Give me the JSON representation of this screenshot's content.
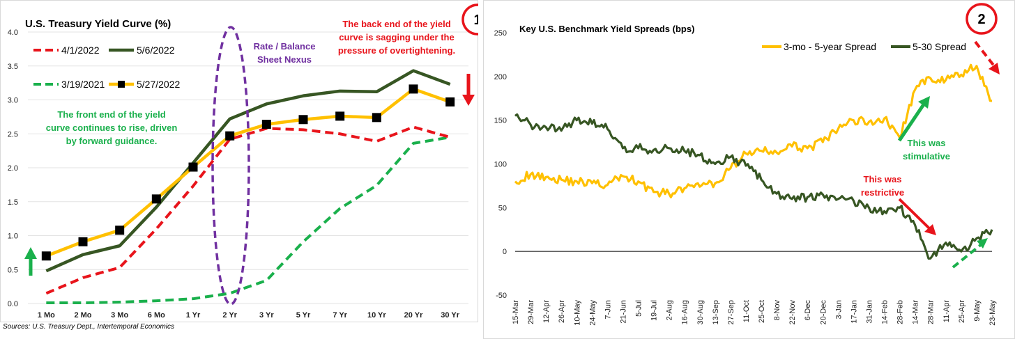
{
  "sources": "Sources: U.S. Treasury Dept., Intertemporal Economics",
  "chart_data": [
    {
      "type": "line",
      "title": "U.S. Treasury Yield Curve (%)",
      "badge": "1",
      "categories": [
        "1 Mo",
        "2 Mo",
        "3 Mo",
        "6 Mo",
        "1 Yr",
        "2 Yr",
        "3 Yr",
        "5 Yr",
        "7 Yr",
        "10 Yr",
        "20 Yr",
        "30 Yr"
      ],
      "ylim": [
        0,
        4.0
      ],
      "yticks": [
        "0.0",
        "0.5",
        "1.0",
        "1.5",
        "2.0",
        "2.5",
        "3.0",
        "3.5",
        "4.0"
      ],
      "series": [
        {
          "name": "4/1/2022",
          "color": "#e8141b",
          "style": "dashed",
          "values": [
            0.15,
            0.38,
            0.53,
            1.1,
            1.73,
            2.42,
            2.58,
            2.56,
            2.5,
            2.39,
            2.6,
            2.45
          ]
        },
        {
          "name": "5/6/2022",
          "color": "#375623",
          "style": "solid",
          "values": [
            0.48,
            0.72,
            0.85,
            1.42,
            2.07,
            2.72,
            2.94,
            3.06,
            3.13,
            3.12,
            3.43,
            3.23
          ]
        },
        {
          "name": "3/19/2021",
          "color": "#1ab04c",
          "style": "dashed",
          "values": [
            0.01,
            0.01,
            0.02,
            0.04,
            0.07,
            0.15,
            0.34,
            0.91,
            1.4,
            1.74,
            2.36,
            2.45
          ]
        },
        {
          "name": "5/27/2022",
          "color": "#ffc000",
          "style": "solid-marker",
          "values": [
            0.7,
            0.91,
            1.08,
            1.54,
            2.01,
            2.47,
            2.64,
            2.71,
            2.76,
            2.74,
            3.16,
            2.97
          ]
        }
      ],
      "annotations": {
        "nexus": [
          "Rate / Balance",
          "Sheet Nexus"
        ],
        "back_end": [
          "The back end of the yield",
          "curve is sagging under the",
          "pressure of overtightening."
        ],
        "front_end": [
          "The front end of the yield",
          "curve continues to rise, driven",
          "by forward guidance."
        ]
      },
      "colors": {
        "nexus": "#7030a0",
        "red": "#e8141b",
        "green": "#1ab04c"
      }
    },
    {
      "type": "line",
      "title": "Key U.S. Benchmark Yield Spreads (bps)",
      "badge": "2",
      "ylim": [
        -50,
        250
      ],
      "yticks": [
        "-50",
        "0",
        "50",
        "100",
        "150",
        "200",
        "250"
      ],
      "x_labels": [
        "15-Mar",
        "29-Mar",
        "12-Apr",
        "26-Apr",
        "10-May",
        "24-May",
        "7-Jun",
        "21-Jun",
        "5-Jul",
        "19-Jul",
        "2-Aug",
        "16-Aug",
        "30-Aug",
        "13-Sep",
        "27-Sep",
        "11-Oct",
        "25-Oct",
        "8-Nov",
        "22-Nov",
        "6-Dec",
        "20-Dec",
        "3-Jan",
        "17-Jan",
        "31-Jan",
        "14-Feb",
        "28-Feb",
        "14-Mar",
        "28-Mar",
        "11-Apr",
        "25-Apr",
        "9-May",
        "23-May"
      ],
      "series": [
        {
          "name": "3-mo - 5-year Spread",
          "color": "#ffc000",
          "x": [
            "15-Mar",
            "29-Mar",
            "12-Apr",
            "26-Apr",
            "10-May",
            "24-May",
            "7-Jun",
            "21-Jun",
            "5-Jul",
            "19-Jul",
            "2-Aug",
            "16-Aug",
            "30-Aug",
            "13-Sep",
            "27-Sep",
            "11-Oct",
            "25-Oct",
            "8-Nov",
            "22-Nov",
            "6-Dec",
            "20-Dec",
            "3-Jan",
            "17-Jan",
            "31-Jan",
            "14-Feb",
            "28-Feb",
            "14-Mar",
            "28-Mar",
            "11-Apr",
            "25-Apr",
            "9-May",
            "23-May"
          ],
          "values": [
            80,
            88,
            85,
            82,
            80,
            78,
            76,
            86,
            80,
            68,
            66,
            72,
            74,
            78,
            95,
            112,
            115,
            113,
            120,
            118,
            125,
            140,
            150,
            148,
            152,
            130,
            185,
            198,
            196,
            202,
            212,
            172
          ]
        },
        {
          "name": "5-30 Spread",
          "color": "#375623",
          "x": [
            "15-Mar",
            "29-Mar",
            "12-Apr",
            "26-Apr",
            "10-May",
            "24-May",
            "7-Jun",
            "21-Jun",
            "5-Jul",
            "19-Jul",
            "2-Aug",
            "16-Aug",
            "30-Aug",
            "13-Sep",
            "27-Sep",
            "11-Oct",
            "25-Oct",
            "8-Nov",
            "22-Nov",
            "6-Dec",
            "20-Dec",
            "3-Jan",
            "17-Jan",
            "31-Jan",
            "14-Feb",
            "28-Feb",
            "14-Mar",
            "28-Mar",
            "11-Apr",
            "25-Apr",
            "9-May",
            "23-May"
          ],
          "values": [
            155,
            145,
            142,
            138,
            150,
            146,
            140,
            118,
            118,
            116,
            118,
            115,
            110,
            100,
            108,
            98,
            82,
            66,
            60,
            62,
            65,
            60,
            58,
            50,
            46,
            50,
            30,
            -8,
            10,
            0,
            15,
            25
          ]
        }
      ],
      "annotations": {
        "stimulative": [
          "This was",
          "stimulative"
        ],
        "restrictive": [
          "This was",
          "restrictive"
        ]
      }
    }
  ]
}
